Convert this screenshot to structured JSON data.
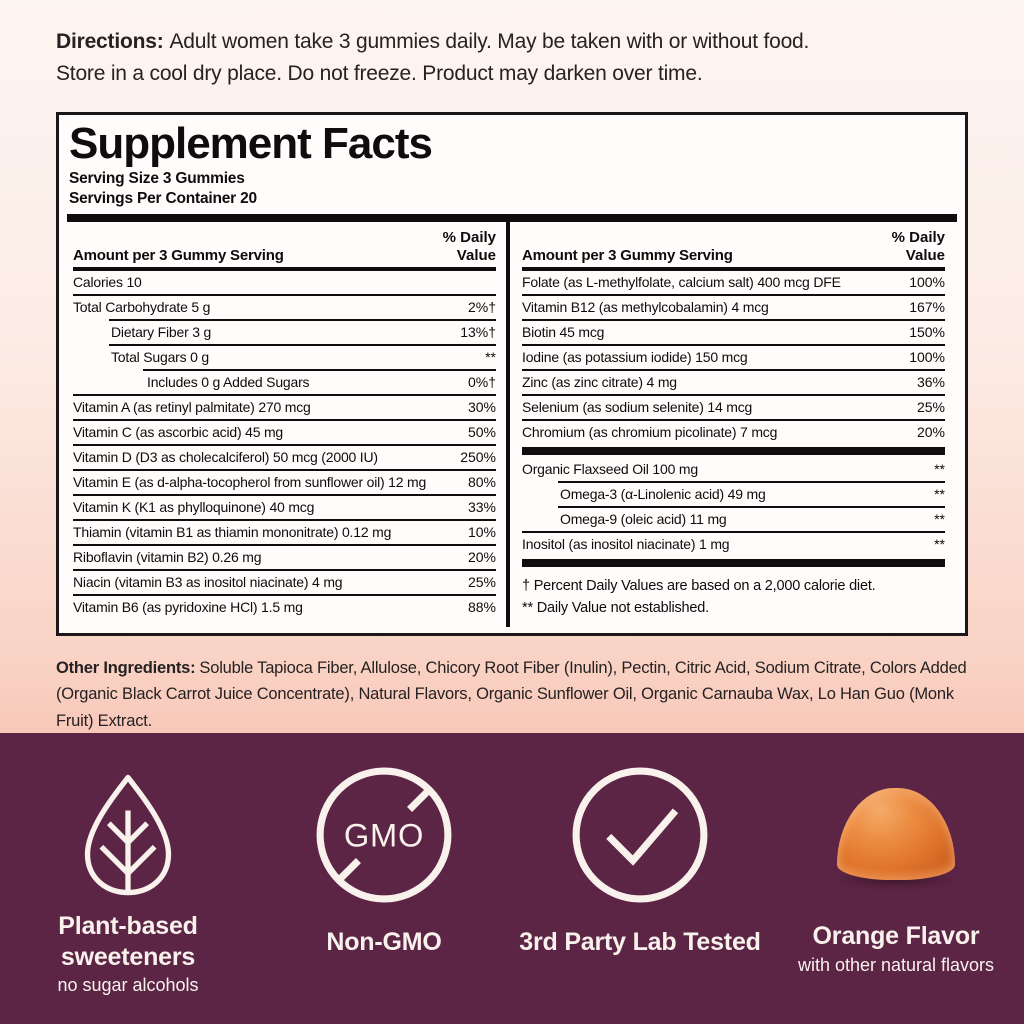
{
  "directions": {
    "label": "Directions:",
    "line1": "Adult women take 3 gummies daily. May be taken with or without food.",
    "line2": "Store in a cool dry place. Do not freeze. Product may darken over time."
  },
  "panel": {
    "title": "Supplement Facts",
    "serving_size": "Serving Size 3 Gummies",
    "servings_per_container": "Servings Per Container 20",
    "column_header": "Amount per 3 Gummy Serving",
    "dv_line1": "% Daily",
    "dv_line2": "Value",
    "left_rows": [
      {
        "name": "Calories 10",
        "dv": "",
        "indent": 0,
        "sep": "none"
      },
      {
        "name": "Total Carbohydrate 5 g",
        "dv": "2%†",
        "indent": 0,
        "sep": "full"
      },
      {
        "name": "Dietary Fiber 3 g",
        "dv": "13%†",
        "indent": 1,
        "sep": "i1"
      },
      {
        "name": "Total Sugars 0 g",
        "dv": "**",
        "indent": 1,
        "sep": "i1"
      },
      {
        "name": "Includes 0 g Added Sugars",
        "dv": "0%†",
        "indent": 2,
        "sep": "i2"
      },
      {
        "name": "Vitamin A (as retinyl palmitate) 270 mcg",
        "dv": "30%",
        "indent": 0,
        "sep": "full"
      },
      {
        "name": "Vitamin C (as ascorbic acid) 45 mg",
        "dv": "50%",
        "indent": 0,
        "sep": "full"
      },
      {
        "name": "Vitamin D (D3 as cholecalciferol) 50 mcg (2000 IU)",
        "dv": "250%",
        "indent": 0,
        "sep": "full"
      },
      {
        "name": "Vitamin E (as d-alpha-tocopherol from sunflower oil) 12 mg",
        "dv": "80%",
        "indent": 0,
        "sep": "full"
      },
      {
        "name": "Vitamin K (K1 as phylloquinone) 40 mcg",
        "dv": "33%",
        "indent": 0,
        "sep": "full"
      },
      {
        "name": "Thiamin (vitamin B1 as thiamin mononitrate) 0.12 mg",
        "dv": "10%",
        "indent": 0,
        "sep": "full"
      },
      {
        "name": "Riboflavin (vitamin B2) 0.26 mg",
        "dv": "20%",
        "indent": 0,
        "sep": "full"
      },
      {
        "name": "Niacin (vitamin B3 as inositol niacinate) 4 mg",
        "dv": "25%",
        "indent": 0,
        "sep": "full"
      },
      {
        "name": "Vitamin B6 (as pyridoxine HCl) 1.5 mg",
        "dv": "88%",
        "indent": 0,
        "sep": "full"
      }
    ],
    "right_rows": [
      {
        "name": "Folate (as L-methylfolate, calcium salt) 400 mcg DFE",
        "dv": "100%",
        "indent": 0,
        "sep": "none"
      },
      {
        "name": "Vitamin B12 (as methylcobalamin) 4 mcg",
        "dv": "167%",
        "indent": 0,
        "sep": "full"
      },
      {
        "name": "Biotin 45 mcg",
        "dv": "150%",
        "indent": 0,
        "sep": "full"
      },
      {
        "name": "Iodine (as potassium iodide) 150 mcg",
        "dv": "100%",
        "indent": 0,
        "sep": "full"
      },
      {
        "name": "Zinc (as zinc citrate) 4 mg",
        "dv": "36%",
        "indent": 0,
        "sep": "full"
      },
      {
        "name": "Selenium (as sodium selenite) 14 mcg",
        "dv": "25%",
        "indent": 0,
        "sep": "full"
      },
      {
        "name": "Chromium (as chromium picolinate) 7 mcg",
        "dv": "20%",
        "indent": 0,
        "sep": "full"
      },
      {
        "type": "bar"
      },
      {
        "name": "Organic Flaxseed Oil 100 mg",
        "dv": "**",
        "indent": 0,
        "sep": "none"
      },
      {
        "name": "Omega-3 (α-Linolenic acid) 49 mg",
        "dv": "**",
        "indent": 1,
        "sep": "i1"
      },
      {
        "name": "Omega-9 (oleic acid) 11 mg",
        "dv": "**",
        "indent": 1,
        "sep": "i1"
      },
      {
        "name": "Inositol (as inositol niacinate) 1 mg",
        "dv": "**",
        "indent": 0,
        "sep": "full"
      },
      {
        "type": "bar"
      }
    ],
    "footnotes": [
      "† Percent Daily Values are based on a 2,000 calorie diet.",
      "** Daily Value not established."
    ]
  },
  "other_ingredients": {
    "label": "Other Ingredients:",
    "text": "Soluble Tapioca Fiber, Allulose, Chicory Root Fiber (Inulin), Pectin, Citric Acid, Sodium Citrate, Colors Added (Organic Black Carrot Juice Concentrate), Natural Flavors, Organic Sunflower Oil, Organic Carnauba Wax, Lo Han Guo (Monk Fruit) Extract."
  },
  "badges": {
    "plant_based": {
      "line1": "Plant-based",
      "line2": "sweeteners",
      "sub": "no sugar alcohols",
      "icon": "leaf-icon"
    },
    "non_gmo": {
      "label": "Non-GMO",
      "circle_text": "GMO",
      "icon": "gmo-crossed-circle-icon"
    },
    "lab_tested": {
      "label": "3rd Party Lab Tested",
      "icon": "checkmark-circle-icon"
    },
    "orange_flavor": {
      "label": "Orange Flavor",
      "sub": "with other natural flavors",
      "icon": "orange-gummy-image"
    }
  },
  "colors": {
    "band_background": "#5c2545",
    "band_text": "#f9f1ec",
    "panel_background": "#fffdfb",
    "panel_border": "#1c1519",
    "page_background_top": "#fdf5f2",
    "page_background_bottom": "#f8c8b9",
    "gummy_orange": "#e0762c",
    "text_black": "#0e0c0c"
  }
}
